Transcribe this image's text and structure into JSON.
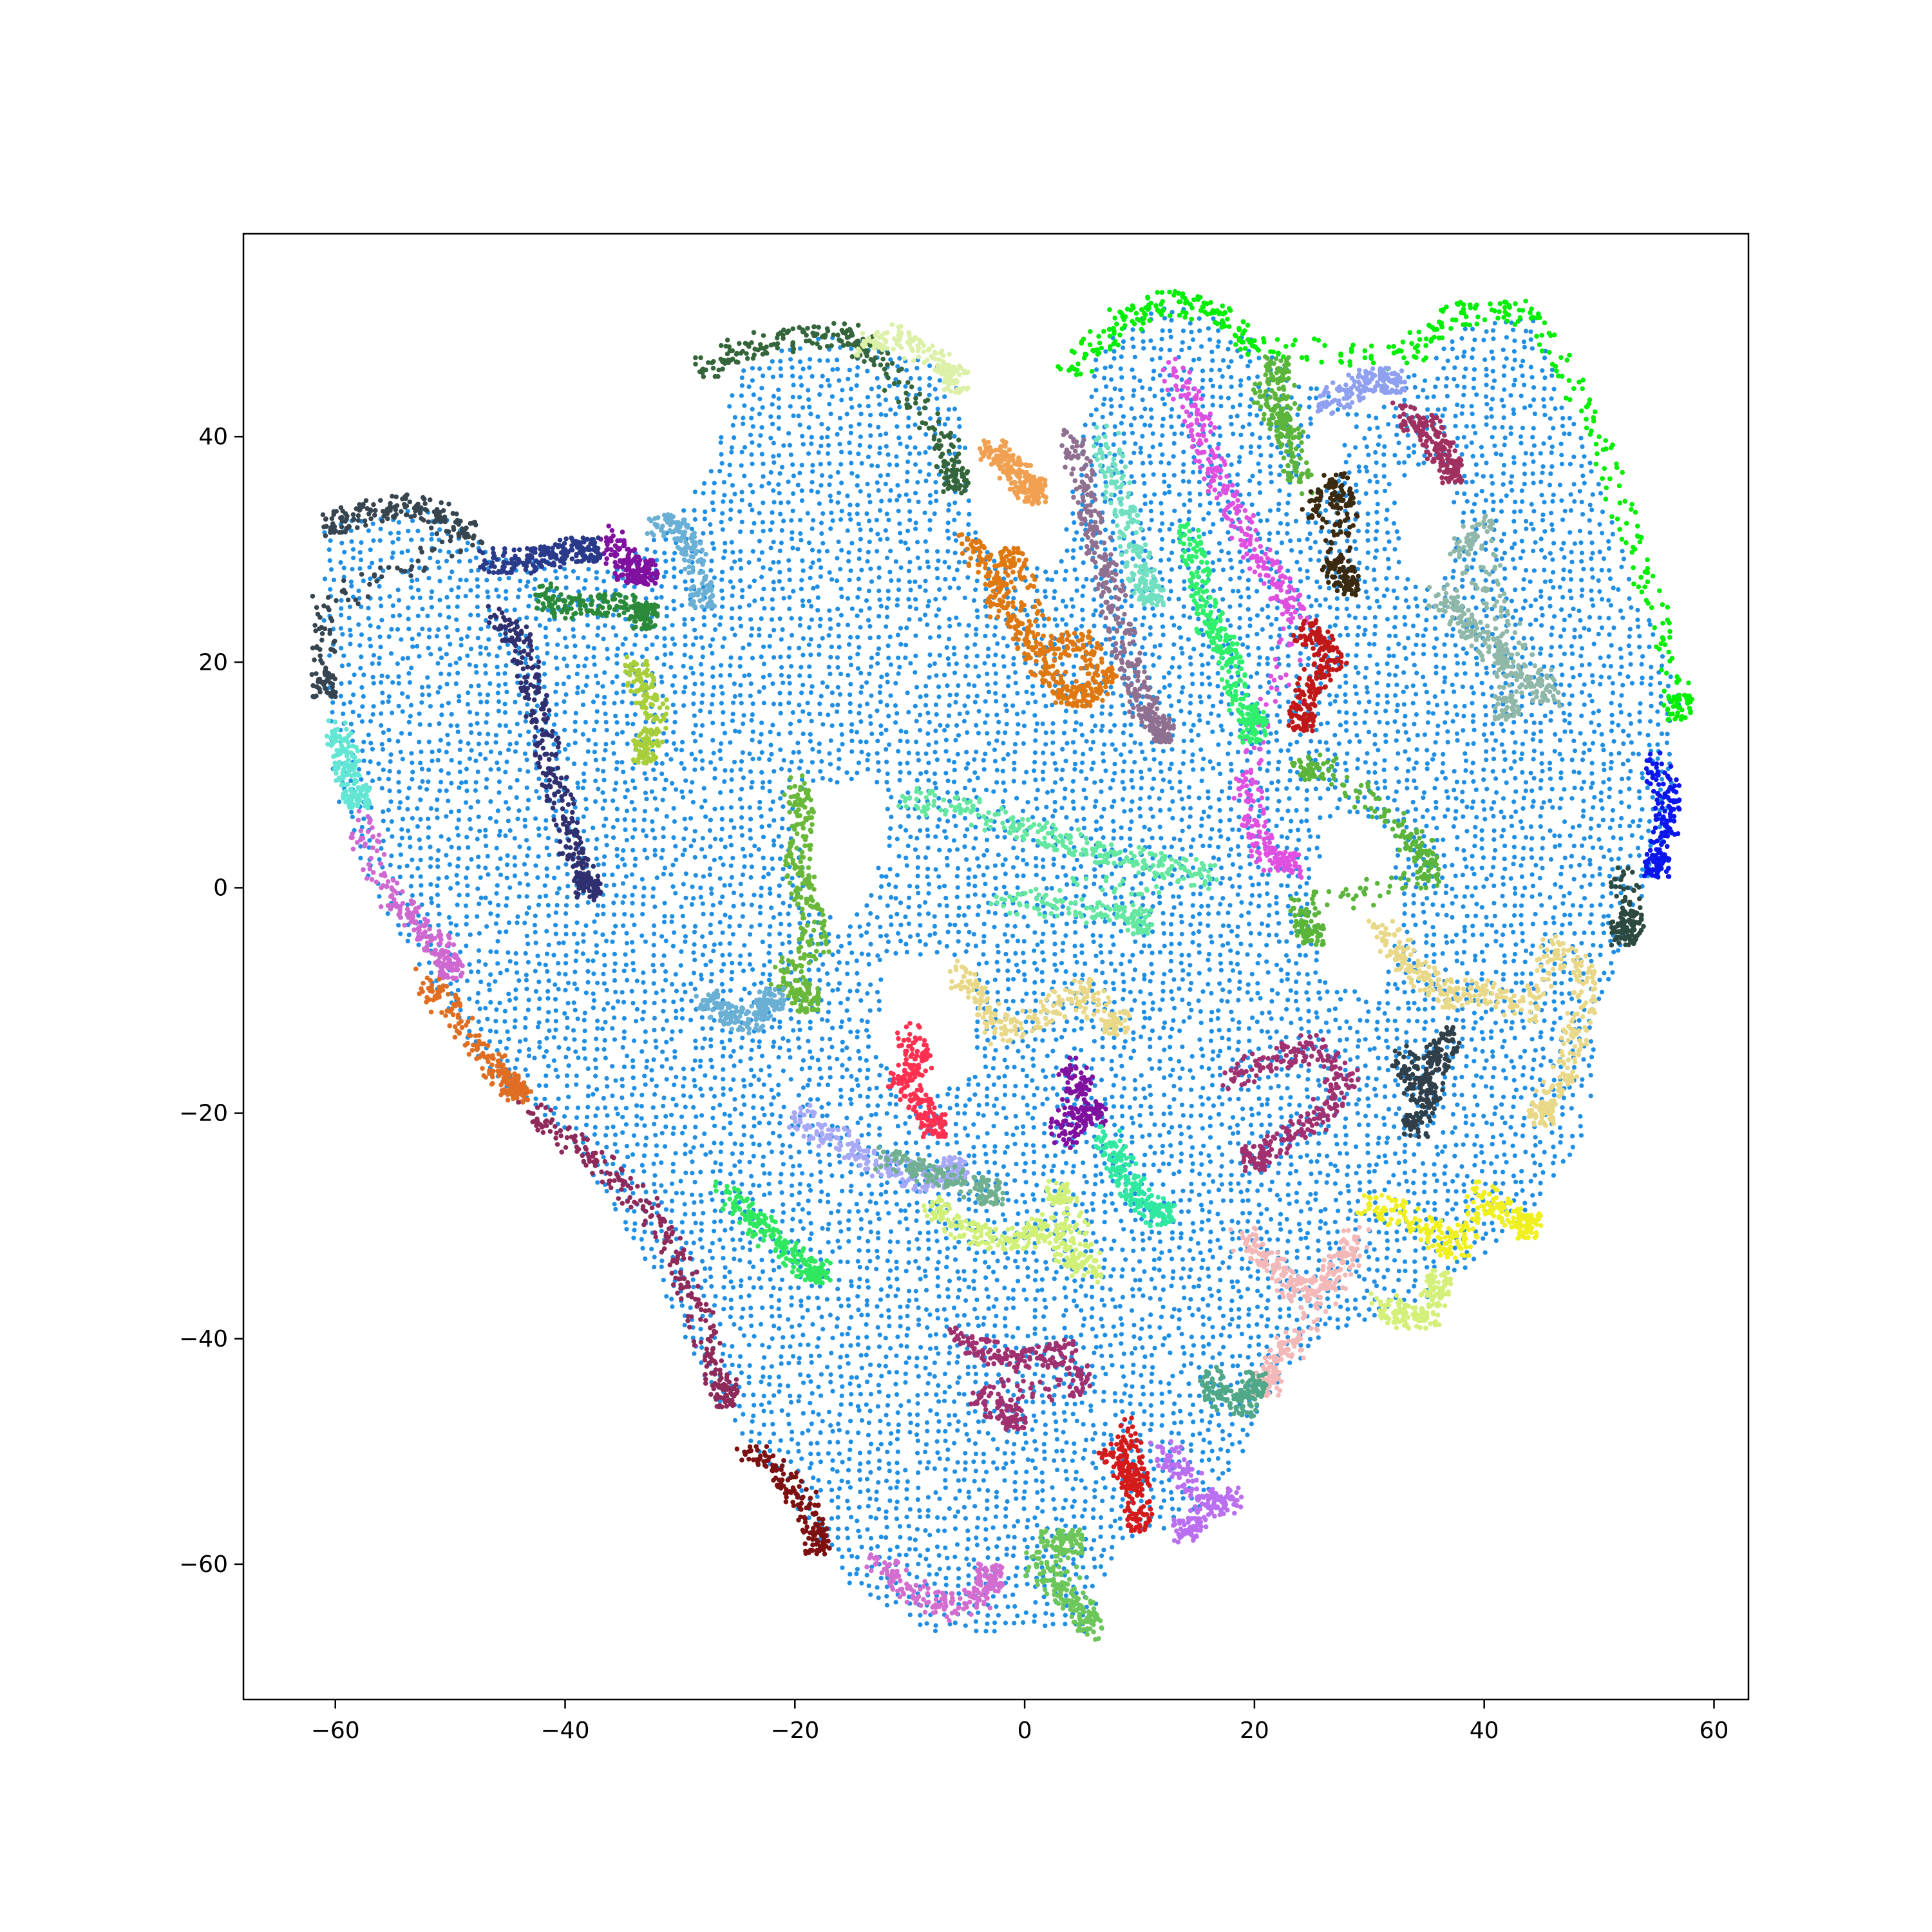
{
  "chart_data": {
    "type": "scatter",
    "title": "",
    "xlabel": "",
    "ylabel": "",
    "xlim": [
      -68,
      63
    ],
    "ylim": [
      -72,
      58
    ],
    "grid": false,
    "legend": "none",
    "x_ticks": [
      -60,
      -40,
      -20,
      0,
      20,
      40,
      60
    ],
    "y_ticks": [
      -60,
      -40,
      -20,
      0,
      20,
      40
    ],
    "x_tick_labels": [
      "−60",
      "−40",
      "−20",
      "0",
      "20",
      "40",
      "60"
    ],
    "y_tick_labels": [
      "−60",
      "−40",
      "−20",
      "0",
      "20",
      "40"
    ],
    "background_cluster": {
      "color": "#1f8fe5",
      "regions": [
        [
          [
            -61,
            32
          ],
          [
            -52,
            34
          ],
          [
            -46,
            30
          ],
          [
            -36,
            28
          ],
          [
            -30,
            33
          ],
          [
            -27,
            38
          ],
          [
            -25,
            46
          ],
          [
            -18,
            49
          ],
          [
            -12,
            48
          ],
          [
            -6,
            46
          ],
          [
            -4,
            30
          ],
          [
            3,
            28
          ],
          [
            5,
            40
          ],
          [
            6,
            48
          ],
          [
            12,
            52
          ],
          [
            18,
            50
          ],
          [
            22,
            47
          ],
          [
            26,
            44
          ],
          [
            30,
            42
          ],
          [
            34,
            46
          ],
          [
            38,
            50
          ],
          [
            44,
            51
          ],
          [
            50,
            36
          ],
          [
            57,
            17
          ],
          [
            56,
            6
          ],
          [
            53,
            -4
          ],
          [
            50,
            -10
          ],
          [
            49,
            -22
          ],
          [
            43,
            -30
          ],
          [
            36,
            -36
          ],
          [
            26,
            -40
          ],
          [
            22,
            -44
          ],
          [
            18,
            -52
          ],
          [
            15,
            -56
          ],
          [
            8,
            -58
          ],
          [
            6,
            -66
          ],
          [
            -2,
            -66
          ],
          [
            -8,
            -66
          ],
          [
            -15,
            -62
          ],
          [
            -22,
            -52
          ],
          [
            -27,
            -45
          ],
          [
            -32,
            -35
          ],
          [
            -40,
            -22
          ],
          [
            -47,
            -16
          ],
          [
            -52,
            -8
          ],
          [
            -57,
            0
          ],
          [
            -60,
            8
          ],
          [
            -61,
            20
          ]
        ]
      ],
      "holes": [
        [
          [
            -20,
            8
          ],
          [
            -13,
            10
          ],
          [
            -12,
            4
          ],
          [
            -15,
            -3
          ],
          [
            -19,
            -1
          ]
        ],
        [
          [
            -12,
            -6
          ],
          [
            -5,
            -6
          ],
          [
            -4,
            -16
          ],
          [
            -10,
            -20
          ],
          [
            -13,
            -14
          ]
        ],
        [
          [
            27,
            7
          ],
          [
            31,
            6
          ],
          [
            33,
            -2
          ],
          [
            31,
            -10
          ],
          [
            26,
            -8
          ],
          [
            25,
            0
          ]
        ],
        [
          [
            32,
            36
          ],
          [
            36,
            38
          ],
          [
            38,
            32
          ],
          [
            36,
            26
          ],
          [
            33,
            28
          ]
        ],
        [
          [
            23,
            32
          ],
          [
            27,
            36
          ],
          [
            28,
            40
          ],
          [
            26,
            44
          ],
          [
            24,
            38
          ]
        ]
      ]
    },
    "clusters": [
      {
        "color": "#36454f",
        "x": [
          -61,
          -58,
          -54,
          -51,
          -48,
          -61,
          -61
        ],
        "y": [
          32,
          33,
          34,
          33,
          31,
          25,
          18
        ]
      },
      {
        "color": "#35653a",
        "x": [
          -28,
          -24,
          -19,
          -15,
          -13,
          -7,
          -6
        ],
        "y": [
          46,
          48,
          49,
          49,
          47,
          40,
          36
        ]
      },
      {
        "color": "#dcf0a8",
        "x": [
          -14,
          -11,
          -8,
          -6
        ],
        "y": [
          48,
          49,
          47,
          45
        ]
      },
      {
        "color": "#00ee00",
        "x": [
          4,
          8,
          12,
          17,
          20,
          33,
          38,
          44,
          50,
          54,
          57
        ],
        "y": [
          46,
          50,
          52,
          51,
          48,
          47,
          51,
          51,
          40,
          28,
          16
        ]
      },
      {
        "color": "#0a16ec",
        "x": [
          55,
          56,
          56,
          55
        ],
        "y": [
          11,
          8,
          5,
          2
        ]
      },
      {
        "color": "#2d4a40",
        "x": [
          52,
          53,
          52
        ],
        "y": [
          1,
          -3,
          -4
        ]
      },
      {
        "color": "#64e6d4",
        "x": [
          -60,
          -59,
          -59,
          -58
        ],
        "y": [
          14,
          12,
          10,
          8
        ]
      },
      {
        "color": "#cf68d0",
        "x": [
          -58,
          -56,
          -53,
          -51,
          -50
        ],
        "y": [
          6,
          0,
          -3,
          -5,
          -7
        ]
      },
      {
        "color": "#e06e22",
        "x": [
          -52,
          -50,
          -47,
          -45,
          -44
        ],
        "y": [
          -8,
          -11,
          -15,
          -17,
          -18
        ]
      },
      {
        "color": "#8e2a5a",
        "x": [
          -43,
          -39,
          -35,
          -31,
          -29,
          -27,
          -26
        ],
        "y": [
          -20,
          -23,
          -26,
          -31,
          -36,
          -42,
          -45
        ]
      },
      {
        "color": "#7d1010",
        "x": [
          -24,
          -21,
          -19,
          -18
        ],
        "y": [
          -50,
          -52,
          -55,
          -58
        ]
      },
      {
        "color": "#d36ed0",
        "x": [
          -13,
          -10,
          -7,
          -4,
          -3
        ],
        "y": [
          -60,
          -62,
          -64,
          -63,
          -61
        ]
      },
      {
        "color": "#6cc65a",
        "x": [
          1,
          3,
          5,
          6,
          2,
          4
        ],
        "y": [
          -60,
          -62,
          -64,
          -66,
          -58,
          -58
        ]
      },
      {
        "color": "#ba6ef0",
        "x": [
          12,
          14,
          16,
          18,
          14
        ],
        "y": [
          -50,
          -52,
          -55,
          -54,
          -57
        ]
      },
      {
        "color": "#d41a1a",
        "x": [
          7,
          9,
          10,
          9,
          10
        ],
        "y": [
          -50,
          -52,
          -53,
          -48,
          -56
        ]
      },
      {
        "color": "#a8cf3a",
        "x": [
          -34,
          -33,
          -32,
          -33
        ],
        "y": [
          20,
          18,
          15,
          12
        ]
      },
      {
        "color": "#2a8a3a",
        "x": [
          -42,
          -40,
          -37,
          -34,
          -33
        ],
        "y": [
          26,
          25,
          25,
          25,
          24
        ]
      },
      {
        "color": "#303070",
        "x": [
          -46,
          -44,
          -43,
          -42,
          -41,
          -40,
          -39,
          -38
        ],
        "y": [
          24,
          22,
          18,
          14,
          10,
          6,
          2,
          0
        ]
      },
      {
        "color": "#8010a0",
        "x": [
          -36,
          -35,
          -34,
          -33
        ],
        "y": [
          31,
          29,
          28,
          28
        ]
      },
      {
        "color": "#2a3a8a",
        "x": [
          -47,
          -44,
          -42,
          -40,
          -38
        ],
        "y": [
          29,
          29,
          29,
          30,
          30
        ]
      },
      {
        "color": "#6ab0d4",
        "x": [
          -32,
          -30,
          -29,
          -28
        ],
        "y": [
          32,
          32,
          30,
          26
        ]
      },
      {
        "color": "#f0a050",
        "x": [
          -3,
          -2,
          -1,
          0,
          1
        ],
        "y": [
          39,
          38,
          37,
          36,
          35
        ]
      },
      {
        "color": "#e07810",
        "x": [
          -5,
          -3,
          -2,
          0,
          2,
          4,
          6,
          7,
          5,
          2,
          -1
        ],
        "y": [
          31,
          28,
          25,
          22,
          19,
          17,
          17,
          19,
          22,
          21,
          29
        ]
      },
      {
        "color": "#8f7090",
        "x": [
          4,
          5,
          6,
          7,
          8,
          9,
          10,
          11,
          12
        ],
        "y": [
          40,
          36,
          32,
          28,
          24,
          20,
          17,
          15,
          14
        ]
      },
      {
        "color": "#e050e0",
        "x": [
          13,
          15,
          16,
          18,
          20,
          22,
          24,
          19,
          20,
          21,
          23
        ],
        "y": [
          46,
          42,
          38,
          34,
          30,
          27,
          24,
          10,
          6,
          3,
          2
        ]
      },
      {
        "color": "#70e0c0",
        "x": [
          7,
          8,
          9,
          10,
          11
        ],
        "y": [
          40,
          36,
          32,
          28,
          26
        ]
      },
      {
        "color": "#2ef06a",
        "x": [
          14,
          15,
          16,
          17,
          18,
          19,
          20
        ],
        "y": [
          32,
          28,
          24,
          22,
          20,
          16,
          14
        ]
      },
      {
        "color": "#5ab53a",
        "x": [
          21,
          22,
          23,
          24,
          22
        ],
        "y": [
          44,
          42,
          40,
          36,
          46
        ]
      },
      {
        "color": "#90a0f0",
        "x": [
          26,
          28,
          30,
          32
        ],
        "y": [
          43,
          44,
          45,
          45
        ]
      },
      {
        "color": "#a03060",
        "x": [
          33,
          35,
          36,
          37
        ],
        "y": [
          42,
          41,
          39,
          37
        ]
      },
      {
        "color": "#3a2a10",
        "x": [
          25,
          27,
          28,
          27,
          28
        ],
        "y": [
          33,
          36,
          34,
          29,
          27
        ]
      },
      {
        "color": "#c01818",
        "x": [
          24,
          26,
          27,
          25,
          24
        ],
        "y": [
          23,
          22,
          20,
          18,
          15
        ]
      },
      {
        "color": "#90b8a8",
        "x": [
          36,
          38,
          40,
          42,
          44,
          46,
          38,
          40,
          42
        ],
        "y": [
          26,
          24,
          22,
          20,
          18,
          17,
          30,
          32,
          16
        ]
      },
      {
        "color": "#5ab53a",
        "x": [
          24,
          26,
          33,
          35,
          35,
          24,
          25
        ],
        "y": [
          10,
          11,
          5,
          3,
          1,
          -2,
          -4
        ]
      },
      {
        "color": "#6ab83a",
        "x": [
          -20,
          -19,
          -20,
          -19,
          -18,
          -21,
          -19
        ],
        "y": [
          9,
          6,
          2,
          -1,
          -5,
          -8,
          -10
        ]
      },
      {
        "color": "#64e8a0",
        "x": [
          -10,
          -5,
          0,
          4,
          8,
          12,
          16,
          -2,
          6,
          10
        ],
        "y": [
          8,
          7,
          5,
          4,
          3,
          2,
          1,
          -1,
          -2,
          -3
        ]
      },
      {
        "color": "#e8d888",
        "x": [
          31,
          33,
          35,
          37,
          40,
          44,
          46,
          49,
          48,
          47,
          45
        ],
        "y": [
          -4,
          -6,
          -8,
          -10,
          -9,
          -11,
          -5,
          -8,
          -13,
          -17,
          -20
        ]
      },
      {
        "color": "#e8d888",
        "x": [
          -6,
          -4,
          -2,
          2,
          5,
          8
        ],
        "y": [
          -7,
          -10,
          -13,
          -11,
          -9,
          -12
        ]
      },
      {
        "color": "#ff3050",
        "x": [
          -10,
          -9,
          -11,
          -9,
          -8
        ],
        "y": [
          -13,
          -15,
          -17,
          -19,
          -21
        ]
      },
      {
        "color": "#8010a0",
        "x": [
          4,
          5,
          3,
          6
        ],
        "y": [
          -16,
          -18,
          -22,
          -20
        ]
      },
      {
        "color": "#a8a8f8",
        "x": [
          -20,
          -17,
          -14,
          -11,
          -8,
          -6
        ],
        "y": [
          -20,
          -22,
          -24,
          -25,
          -26,
          -25
        ]
      },
      {
        "color": "#30e860",
        "x": [
          -26,
          -24,
          -22,
          -20,
          -18
        ],
        "y": [
          -27,
          -29,
          -31,
          -33,
          -34
        ]
      },
      {
        "color": "#d0f078",
        "x": [
          -8,
          -6,
          -3,
          0,
          2,
          4,
          6,
          3
        ],
        "y": [
          -28,
          -30,
          -31,
          -31,
          -30,
          -33,
          -34,
          -27
        ]
      },
      {
        "color": "#30e8a0",
        "x": [
          7,
          8,
          9,
          10,
          12
        ],
        "y": [
          -22,
          -24,
          -26,
          -28,
          -29
        ]
      },
      {
        "color": "#a03070",
        "x": [
          18,
          22,
          25,
          28,
          26,
          23,
          20
        ],
        "y": [
          -17,
          -15,
          -14,
          -17,
          -20,
          -22,
          -24
        ]
      },
      {
        "color": "#30404a",
        "x": [
          33,
          34,
          35,
          36,
          37,
          34
        ],
        "y": [
          -15,
          -17,
          -19,
          -15,
          -13,
          -21
        ]
      },
      {
        "color": "#f0f020",
        "x": [
          30,
          33,
          36,
          38,
          40,
          42,
          44
        ],
        "y": [
          -28,
          -29,
          -31,
          -32,
          -27,
          -29,
          -30
        ]
      },
      {
        "color": "#f4b8b8",
        "x": [
          19,
          21,
          23,
          25,
          27,
          29,
          24,
          22,
          21
        ],
        "y": [
          -31,
          -33,
          -35,
          -36,
          -34,
          -31,
          -40,
          -42,
          -44
        ]
      },
      {
        "color": "#d4f078",
        "x": [
          31,
          33,
          35,
          36
        ],
        "y": [
          -37,
          -38,
          -38,
          -35
        ]
      },
      {
        "color": "#a03070",
        "x": [
          -6,
          -3,
          0,
          3,
          5,
          -4,
          -1
        ],
        "y": [
          -40,
          -41,
          -42,
          -41,
          -44,
          -45,
          -47
        ]
      },
      {
        "color": "#50a888",
        "x": [
          16,
          17,
          19,
          20
        ],
        "y": [
          -43,
          -45,
          -46,
          -44
        ]
      },
      {
        "color": "#70b090",
        "x": [
          -12,
          -9,
          -6,
          -3
        ],
        "y": [
          -24,
          -25,
          -26,
          -27
        ]
      },
      {
        "color": "#6ab0d4",
        "x": [
          -28,
          -26,
          -24,
          -22
        ],
        "y": [
          -10,
          -11,
          -12,
          -10
        ]
      }
    ]
  }
}
